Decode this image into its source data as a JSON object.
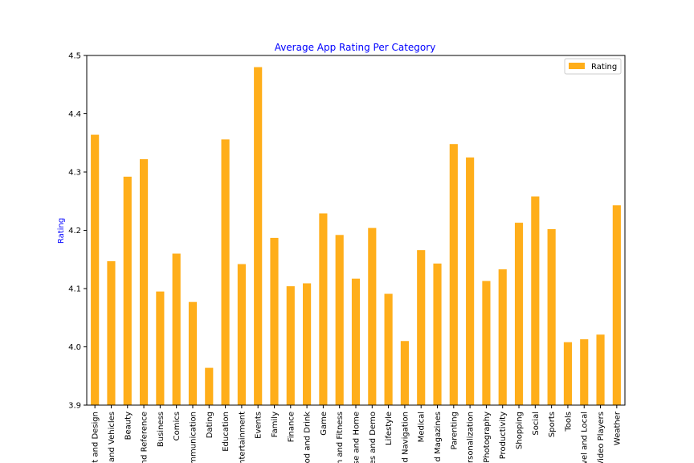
{
  "colors": {
    "bar": "#FFAE1A",
    "title": "#0000FF",
    "ylabel": "#0000FF",
    "axis": "#000000"
  },
  "chart_data": {
    "type": "bar",
    "title": "Average App Rating Per Category",
    "xlabel": "",
    "ylabel": "Rating",
    "ylim": [
      3.9,
      4.5
    ],
    "yticks": [
      3.9,
      4.0,
      4.1,
      4.2,
      4.3,
      4.4,
      4.5
    ],
    "ytick_labels": [
      "3.9",
      "4.0",
      "4.1",
      "4.2",
      "4.3",
      "4.4",
      "4.5"
    ],
    "grid": false,
    "legend": {
      "position": "top-right",
      "entries": [
        "Rating"
      ]
    },
    "categories": [
      "t and Design",
      "and Vehicles",
      "Beauty",
      "nd Reference",
      "Business",
      "Comics",
      "mmunication",
      "Dating",
      "Education",
      "ntertainment",
      "Events",
      "Family",
      "Finance",
      "od and Drink",
      "Game",
      "n and Fitness",
      "se and Home",
      "es and Demo",
      "Lifestyle",
      "d Navigation",
      "Medical",
      "d Magazines",
      "Parenting",
      "ersonalization",
      "Photography",
      "Productivity",
      "Shopping",
      "Social",
      "Sports",
      "Tools",
      "vel and Local",
      "Video Players",
      "Weather"
    ],
    "series": [
      {
        "name": "Rating",
        "values": [
          4.364,
          4.147,
          4.292,
          4.322,
          4.095,
          4.16,
          4.077,
          3.964,
          4.356,
          4.142,
          4.48,
          4.187,
          4.104,
          4.109,
          4.229,
          4.192,
          4.117,
          4.204,
          4.091,
          4.01,
          4.166,
          4.143,
          4.348,
          4.325,
          4.113,
          4.133,
          4.213,
          4.258,
          4.202,
          4.008,
          4.013,
          4.021,
          4.243
        ]
      }
    ]
  }
}
